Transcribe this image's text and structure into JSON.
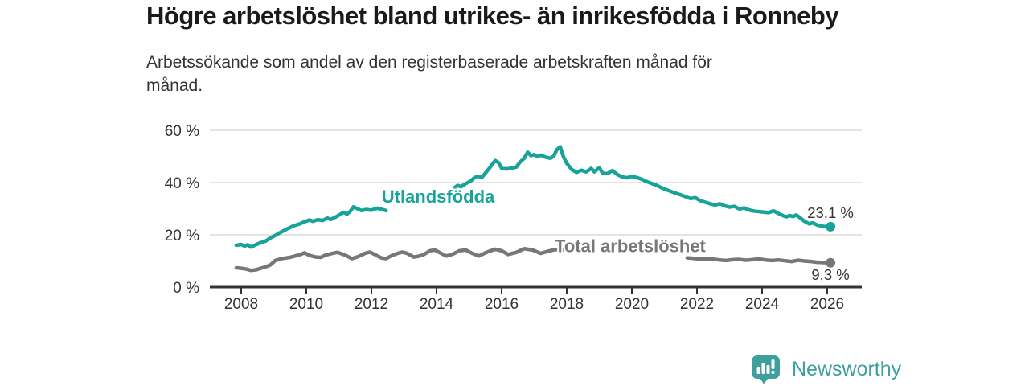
{
  "chart_data": {
    "type": "line",
    "title": "Högre arbetslöshet bland utrikes- än inrikesfödda i Ronneby",
    "subtitle": "Arbetssökande som andel av den registerbaserade arbetskraften månad för månad.",
    "x_axis": {
      "min": 2007.6,
      "max": 2027.0,
      "ticks": [
        2008,
        2010,
        2012,
        2014,
        2016,
        2018,
        2020,
        2022,
        2024,
        2026
      ],
      "grid": false
    },
    "y_axis": {
      "min": 0,
      "max": 60,
      "ticks": [
        {
          "value": 0,
          "label": "0 %"
        },
        {
          "value": 20,
          "label": "20 %"
        },
        {
          "value": 40,
          "label": "40 %"
        },
        {
          "value": 60,
          "label": "60 %"
        }
      ],
      "grid": true
    },
    "legend_position": "inline-labels",
    "series": [
      {
        "slug": "utlandsfodda",
        "name": "Utlandsfödda",
        "color": "#17a398",
        "inline_label": {
          "text": "Utlandsfödda",
          "x": 2014.05,
          "y": 34.4
        },
        "end": {
          "x": 2026.1,
          "y": 23.1,
          "label": "23,1 %",
          "label_position": "above"
        },
        "segments": [
          [
            [
              2007.85,
              16.0
            ],
            [
              2008.0,
              16.3
            ],
            [
              2008.1,
              15.7
            ],
            [
              2008.2,
              16.2
            ],
            [
              2008.3,
              15.3
            ],
            [
              2008.45,
              16.2
            ],
            [
              2008.6,
              17.0
            ],
            [
              2008.75,
              17.6
            ],
            [
              2008.9,
              18.8
            ],
            [
              2009.05,
              19.8
            ],
            [
              2009.2,
              20.9
            ],
            [
              2009.4,
              22.2
            ],
            [
              2009.6,
              23.4
            ],
            [
              2009.8,
              24.2
            ],
            [
              2009.95,
              25.0
            ],
            [
              2010.1,
              25.7
            ],
            [
              2010.2,
              25.2
            ],
            [
              2010.35,
              25.8
            ],
            [
              2010.5,
              25.5
            ],
            [
              2010.65,
              26.4
            ],
            [
              2010.75,
              25.9
            ],
            [
              2010.9,
              26.8
            ],
            [
              2011.05,
              27.9
            ],
            [
              2011.15,
              28.6
            ],
            [
              2011.25,
              27.9
            ],
            [
              2011.35,
              29.0
            ],
            [
              2011.45,
              30.7
            ],
            [
              2011.6,
              29.8
            ],
            [
              2011.7,
              29.3
            ],
            [
              2011.85,
              29.7
            ],
            [
              2012.0,
              29.4
            ],
            [
              2012.1,
              29.9
            ],
            [
              2012.2,
              30.2
            ],
            [
              2012.3,
              29.8
            ],
            [
              2012.45,
              29.3
            ]
          ],
          [
            [
              2014.55,
              38.0
            ],
            [
              2014.65,
              38.9
            ],
            [
              2014.75,
              38.4
            ],
            [
              2014.9,
              39.6
            ],
            [
              2015.05,
              40.6
            ],
            [
              2015.15,
              41.7
            ],
            [
              2015.25,
              42.4
            ],
            [
              2015.4,
              42.1
            ],
            [
              2015.5,
              43.6
            ],
            [
              2015.65,
              45.9
            ],
            [
              2015.8,
              48.4
            ],
            [
              2015.9,
              47.7
            ],
            [
              2016.0,
              45.5
            ],
            [
              2016.15,
              45.2
            ],
            [
              2016.3,
              45.5
            ],
            [
              2016.45,
              45.9
            ],
            [
              2016.55,
              47.6
            ],
            [
              2016.7,
              49.4
            ],
            [
              2016.8,
              51.6
            ],
            [
              2016.9,
              50.3
            ],
            [
              2017.0,
              50.7
            ],
            [
              2017.1,
              49.9
            ],
            [
              2017.2,
              50.5
            ],
            [
              2017.35,
              49.7
            ],
            [
              2017.5,
              49.3
            ],
            [
              2017.6,
              50.1
            ],
            [
              2017.7,
              52.6
            ],
            [
              2017.8,
              53.7
            ],
            [
              2017.9,
              49.8
            ],
            [
              2018.0,
              47.4
            ],
            [
              2018.15,
              45.0
            ],
            [
              2018.3,
              43.9
            ],
            [
              2018.45,
              44.7
            ],
            [
              2018.6,
              44.1
            ],
            [
              2018.75,
              45.4
            ],
            [
              2018.85,
              44.1
            ],
            [
              2019.0,
              45.7
            ],
            [
              2019.1,
              43.6
            ],
            [
              2019.25,
              43.4
            ],
            [
              2019.4,
              44.6
            ],
            [
              2019.55,
              43.1
            ],
            [
              2019.7,
              42.2
            ],
            [
              2019.85,
              41.8
            ],
            [
              2020.0,
              42.4
            ],
            [
              2020.15,
              41.9
            ],
            [
              2020.3,
              41.3
            ],
            [
              2020.45,
              40.4
            ],
            [
              2020.6,
              39.7
            ],
            [
              2020.75,
              39.0
            ],
            [
              2020.9,
              38.1
            ],
            [
              2021.05,
              37.3
            ],
            [
              2021.2,
              36.6
            ],
            [
              2021.35,
              35.9
            ],
            [
              2021.5,
              35.3
            ],
            [
              2021.65,
              34.6
            ],
            [
              2021.8,
              33.9
            ],
            [
              2021.95,
              34.2
            ],
            [
              2022.1,
              33.1
            ],
            [
              2022.25,
              32.5
            ],
            [
              2022.4,
              31.9
            ],
            [
              2022.55,
              31.4
            ],
            [
              2022.7,
              31.9
            ],
            [
              2022.85,
              31.1
            ],
            [
              2023.0,
              30.6
            ],
            [
              2023.15,
              30.9
            ],
            [
              2023.3,
              29.9
            ],
            [
              2023.45,
              30.3
            ],
            [
              2023.6,
              29.5
            ],
            [
              2023.75,
              29.1
            ],
            [
              2023.9,
              28.9
            ],
            [
              2024.05,
              28.7
            ],
            [
              2024.2,
              28.5
            ],
            [
              2024.35,
              29.2
            ],
            [
              2024.5,
              28.2
            ],
            [
              2024.65,
              27.3
            ],
            [
              2024.75,
              26.9
            ],
            [
              2024.85,
              27.4
            ],
            [
              2024.95,
              27.0
            ],
            [
              2025.05,
              27.6
            ],
            [
              2025.2,
              26.2
            ],
            [
              2025.3,
              25.2
            ],
            [
              2025.45,
              24.2
            ],
            [
              2025.55,
              24.6
            ],
            [
              2025.7,
              23.7
            ],
            [
              2025.85,
              23.3
            ],
            [
              2026.0,
              23.0
            ],
            [
              2026.1,
              23.1
            ]
          ]
        ]
      },
      {
        "slug": "total-arbetsloshet",
        "name": "Total arbetslöshet",
        "color": "#75787b",
        "inline_label": {
          "text": "Total arbetslöshet",
          "x": 2019.95,
          "y": 15.6
        },
        "end": {
          "x": 2026.1,
          "y": 9.3,
          "label": "9,3 %",
          "label_position": "below"
        },
        "segments": [
          [
            [
              2007.85,
              7.4
            ],
            [
              2008.0,
              7.2
            ],
            [
              2008.15,
              6.9
            ],
            [
              2008.3,
              6.4
            ],
            [
              2008.45,
              6.6
            ],
            [
              2008.6,
              7.2
            ],
            [
              2008.75,
              7.7
            ],
            [
              2008.9,
              8.5
            ],
            [
              2009.05,
              10.2
            ],
            [
              2009.25,
              10.9
            ],
            [
              2009.5,
              11.4
            ],
            [
              2009.75,
              12.2
            ],
            [
              2009.95,
              13.1
            ],
            [
              2010.1,
              12.1
            ],
            [
              2010.3,
              11.5
            ],
            [
              2010.45,
              11.4
            ],
            [
              2010.6,
              12.3
            ],
            [
              2010.8,
              12.9
            ],
            [
              2010.95,
              13.3
            ],
            [
              2011.1,
              12.7
            ],
            [
              2011.25,
              11.9
            ],
            [
              2011.4,
              10.9
            ],
            [
              2011.6,
              11.7
            ],
            [
              2011.8,
              12.9
            ],
            [
              2011.95,
              13.4
            ],
            [
              2012.1,
              12.5
            ],
            [
              2012.3,
              11.2
            ],
            [
              2012.45,
              10.9
            ],
            [
              2012.6,
              11.9
            ],
            [
              2012.8,
              12.9
            ],
            [
              2012.95,
              13.4
            ],
            [
              2013.1,
              12.9
            ],
            [
              2013.3,
              11.5
            ],
            [
              2013.45,
              11.8
            ],
            [
              2013.6,
              12.4
            ],
            [
              2013.8,
              13.9
            ],
            [
              2013.95,
              14.2
            ],
            [
              2014.1,
              13.2
            ],
            [
              2014.3,
              11.9
            ],
            [
              2014.5,
              12.6
            ],
            [
              2014.7,
              13.9
            ],
            [
              2014.9,
              14.2
            ],
            [
              2015.1,
              12.9
            ],
            [
              2015.3,
              11.9
            ],
            [
              2015.55,
              13.4
            ],
            [
              2015.8,
              14.5
            ],
            [
              2016.0,
              13.9
            ],
            [
              2016.2,
              12.5
            ],
            [
              2016.45,
              13.3
            ],
            [
              2016.7,
              14.7
            ],
            [
              2016.95,
              14.2
            ],
            [
              2017.2,
              12.9
            ],
            [
              2017.45,
              13.8
            ],
            [
              2017.65,
              14.4
            ],
            [
              2017.9,
              14.2
            ]
          ],
          [
            [
              2021.7,
              11.2
            ],
            [
              2021.9,
              11.0
            ],
            [
              2022.1,
              10.7
            ],
            [
              2022.3,
              10.9
            ],
            [
              2022.5,
              10.7
            ],
            [
              2022.7,
              10.4
            ],
            [
              2022.9,
              10.2
            ],
            [
              2023.1,
              10.5
            ],
            [
              2023.3,
              10.6
            ],
            [
              2023.5,
              10.3
            ],
            [
              2023.7,
              10.5
            ],
            [
              2023.9,
              10.8
            ],
            [
              2024.1,
              10.4
            ],
            [
              2024.3,
              10.2
            ],
            [
              2024.5,
              10.4
            ],
            [
              2024.7,
              10.1
            ],
            [
              2024.9,
              9.8
            ],
            [
              2025.1,
              10.3
            ],
            [
              2025.3,
              10.0
            ],
            [
              2025.5,
              9.8
            ],
            [
              2025.7,
              9.5
            ],
            [
              2025.9,
              9.4
            ],
            [
              2026.1,
              9.3
            ]
          ]
        ]
      }
    ]
  },
  "branding": {
    "logo_text": "Newsworthy"
  },
  "colors": {
    "accent_teal": "#17a398",
    "neutral_gray": "#75787b",
    "logo_teal": "#3f9f9c",
    "grid": "#dcdcdc",
    "axis": "#333333",
    "text": "#333333",
    "title_text": "#1a1a1a"
  }
}
